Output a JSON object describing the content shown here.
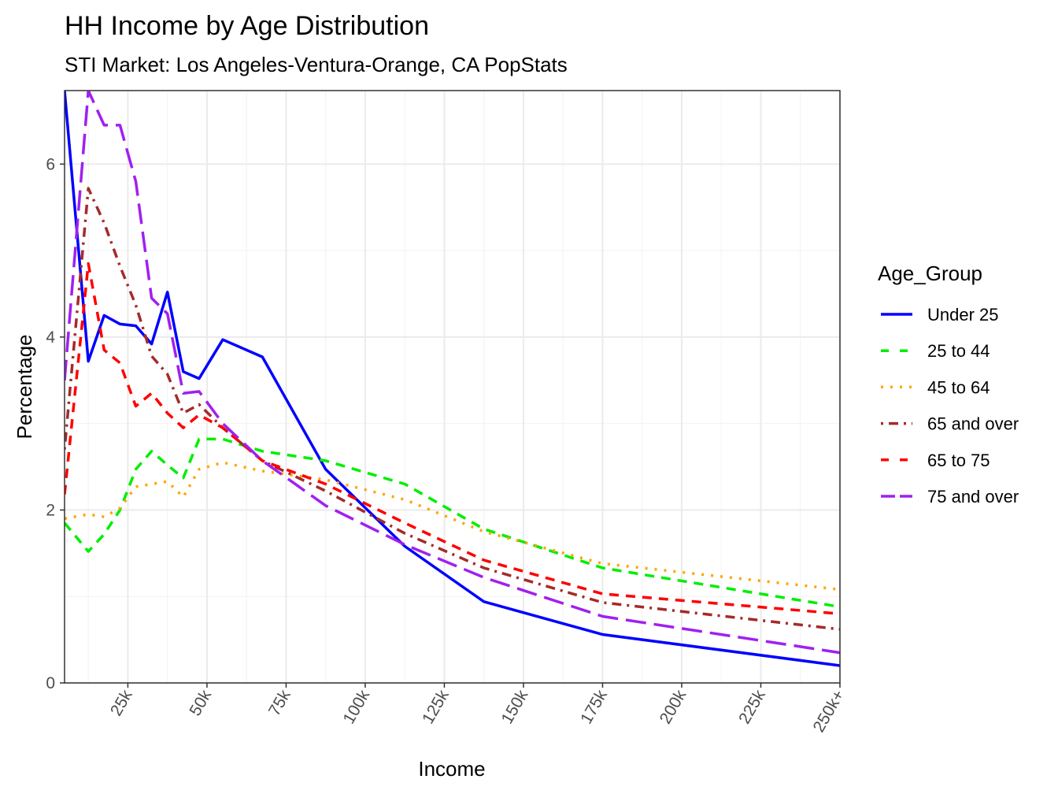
{
  "chart_data": {
    "type": "line",
    "title": "HH Income by Age Distribution",
    "subtitle": "STI Market: Los Angeles-Ventura-Orange, CA PopStats",
    "xlabel": "Income",
    "ylabel": "Percentage",
    "xlim": [
      5000,
      250000
    ],
    "ylim": [
      0,
      6.85
    ],
    "x_ticks": [
      {
        "value": 25000,
        "label": "25k"
      },
      {
        "value": 50000,
        "label": "50k"
      },
      {
        "value": 75000,
        "label": "75k"
      },
      {
        "value": 100000,
        "label": "100k"
      },
      {
        "value": 125000,
        "label": "125k"
      },
      {
        "value": 150000,
        "label": "150k"
      },
      {
        "value": 175000,
        "label": "175k"
      },
      {
        "value": 200000,
        "label": "200k"
      },
      {
        "value": 225000,
        "label": "225k"
      },
      {
        "value": 250000,
        "label": "250k+"
      }
    ],
    "y_ticks": [
      0,
      2,
      4,
      6
    ],
    "grid": true,
    "legend_title": "Age_Group",
    "legend_position": "right",
    "x": [
      5000,
      12500,
      17500,
      22500,
      27500,
      32500,
      37500,
      42500,
      47500,
      55000,
      67500,
      87500,
      112500,
      137500,
      175000,
      250000
    ],
    "series": [
      {
        "name": "Under 25",
        "color": "#0000ff",
        "dash": "solid",
        "values": [
          6.85,
          3.72,
          4.25,
          4.15,
          4.13,
          3.92,
          4.52,
          3.6,
          3.52,
          3.97,
          3.77,
          2.47,
          1.58,
          0.94,
          0.56,
          0.2
        ]
      },
      {
        "name": "25 to 44",
        "color": "#00ee00",
        "dash": "dashed",
        "values": [
          1.85,
          1.52,
          1.72,
          2.0,
          2.47,
          2.68,
          2.52,
          2.37,
          2.82,
          2.82,
          2.68,
          2.57,
          2.3,
          1.78,
          1.33,
          0.88
        ]
      },
      {
        "name": "45 to 64",
        "color": "#ffa500",
        "dash": "dotted",
        "values": [
          1.9,
          1.95,
          1.92,
          2.02,
          2.27,
          2.3,
          2.33,
          2.15,
          2.47,
          2.55,
          2.45,
          2.35,
          2.12,
          1.75,
          1.38,
          1.08
        ]
      },
      {
        "name": "65 and over",
        "color": "#a52a2a",
        "dash": "dotdash",
        "values": [
          2.7,
          5.72,
          5.32,
          4.82,
          4.37,
          3.78,
          3.57,
          3.12,
          3.22,
          2.95,
          2.57,
          2.22,
          1.73,
          1.33,
          0.93,
          0.62
        ]
      },
      {
        "name": "65 to 75",
        "color": "#ff0000",
        "dash": "dashed",
        "values": [
          2.18,
          4.85,
          3.85,
          3.7,
          3.2,
          3.35,
          3.12,
          2.95,
          3.1,
          2.95,
          2.57,
          2.3,
          1.85,
          1.42,
          1.03,
          0.8
        ]
      },
      {
        "name": "75 and over",
        "color": "#a020f0",
        "dash": "longdash",
        "values": [
          3.5,
          6.85,
          6.45,
          6.45,
          5.8,
          4.45,
          4.27,
          3.35,
          3.37,
          3.0,
          2.57,
          2.05,
          1.6,
          1.22,
          0.77,
          0.35
        ]
      }
    ]
  }
}
